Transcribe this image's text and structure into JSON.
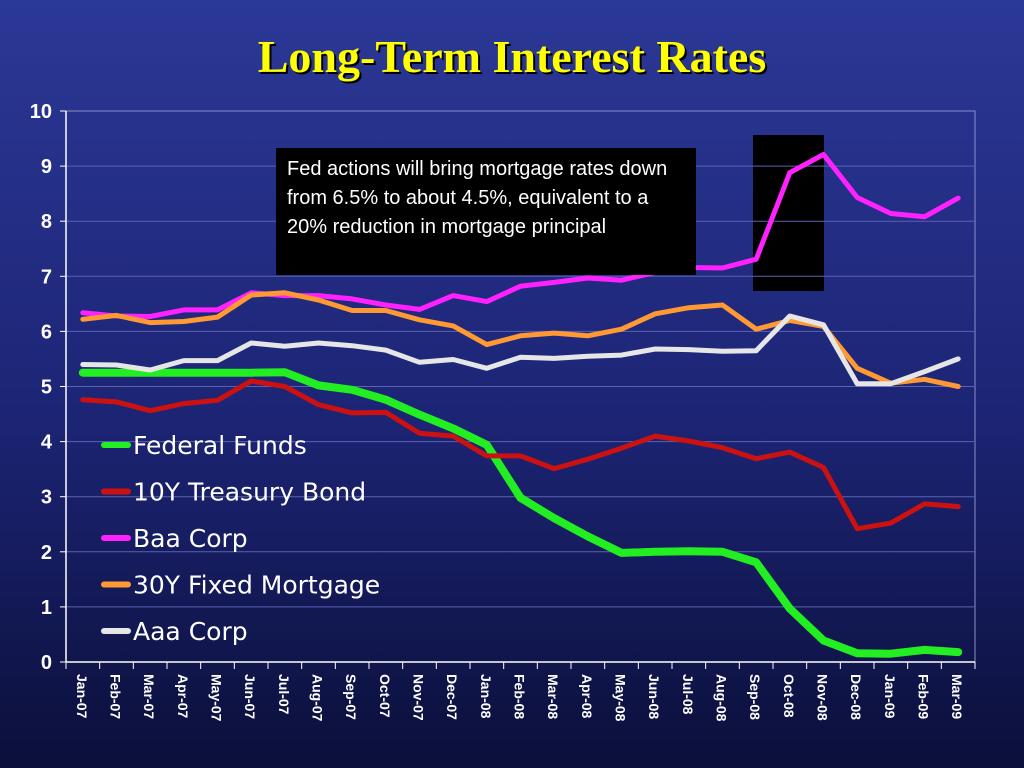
{
  "chart_data": {
    "type": "line",
    "title": "Long-Term Interest Rates",
    "annotation": "Fed actions will bring mortgage rates down from 6.5% to about 4.5%, equivalent to a 20% reduction in mortgage principal",
    "x": [
      "Jan-07",
      "Feb-07",
      "Mar-07",
      "Apr-07",
      "May-07",
      "Jun-07",
      "Jul-07",
      "Aug-07",
      "Sep-07",
      "Oct-07",
      "Nov-07",
      "Dec-07",
      "Jan-08",
      "Feb-08",
      "Mar-08",
      "Apr-08",
      "May-08",
      "Jun-08",
      "Jul-08",
      "Aug-08",
      "Sep-08",
      "Oct-08",
      "Nov-08",
      "Dec-08",
      "Jan-09",
      "Feb-09",
      "Mar-09"
    ],
    "ylim": [
      0,
      10
    ],
    "yticks": [
      0,
      1,
      2,
      3,
      4,
      5,
      6,
      7,
      8,
      9,
      10
    ],
    "grid": true,
    "legend_position": "left",
    "series": [
      {
        "name": "Federal Funds",
        "color": "#22ee22",
        "values": [
          5.25,
          5.25,
          5.25,
          5.25,
          5.25,
          5.25,
          5.26,
          5.02,
          4.94,
          4.76,
          4.49,
          4.24,
          3.94,
          2.98,
          2.61,
          2.28,
          1.98,
          2.0,
          2.01,
          2.0,
          1.81,
          0.97,
          0.39,
          0.16,
          0.15,
          0.22,
          0.18
        ]
      },
      {
        "name": "10Y Treasury Bond",
        "color": "#cc1111",
        "values": [
          4.76,
          4.72,
          4.56,
          4.69,
          4.75,
          5.1,
          5.0,
          4.67,
          4.52,
          4.53,
          4.15,
          4.1,
          3.74,
          3.74,
          3.51,
          3.68,
          3.88,
          4.1,
          4.01,
          3.89,
          3.69,
          3.81,
          3.53,
          2.42,
          2.52,
          2.87,
          2.82
        ]
      },
      {
        "name": "Baa Corp",
        "color": "#ff22ff",
        "values": [
          6.34,
          6.28,
          6.27,
          6.39,
          6.39,
          6.7,
          6.65,
          6.65,
          6.59,
          6.48,
          6.4,
          6.65,
          6.54,
          6.82,
          6.89,
          6.97,
          6.93,
          7.07,
          7.16,
          7.15,
          7.31,
          8.88,
          9.21,
          8.43,
          8.14,
          8.08,
          8.42
        ]
      },
      {
        "name": "30Y Fixed Mortgage",
        "color": "#ff9933",
        "values": [
          6.22,
          6.29,
          6.16,
          6.18,
          6.26,
          6.66,
          6.7,
          6.57,
          6.38,
          6.38,
          6.21,
          6.1,
          5.76,
          5.92,
          5.97,
          5.92,
          6.04,
          6.32,
          6.43,
          6.48,
          6.04,
          6.2,
          6.09,
          5.33,
          5.06,
          5.13,
          5.0
        ]
      },
      {
        "name": "Aaa Corp",
        "color": "#e6e6e6",
        "values": [
          5.4,
          5.39,
          5.3,
          5.47,
          5.47,
          5.79,
          5.73,
          5.79,
          5.74,
          5.66,
          5.44,
          5.49,
          5.33,
          5.53,
          5.51,
          5.55,
          5.57,
          5.68,
          5.67,
          5.64,
          5.65,
          6.28,
          6.12,
          5.05,
          5.05,
          5.27,
          5.5
        ]
      }
    ]
  }
}
